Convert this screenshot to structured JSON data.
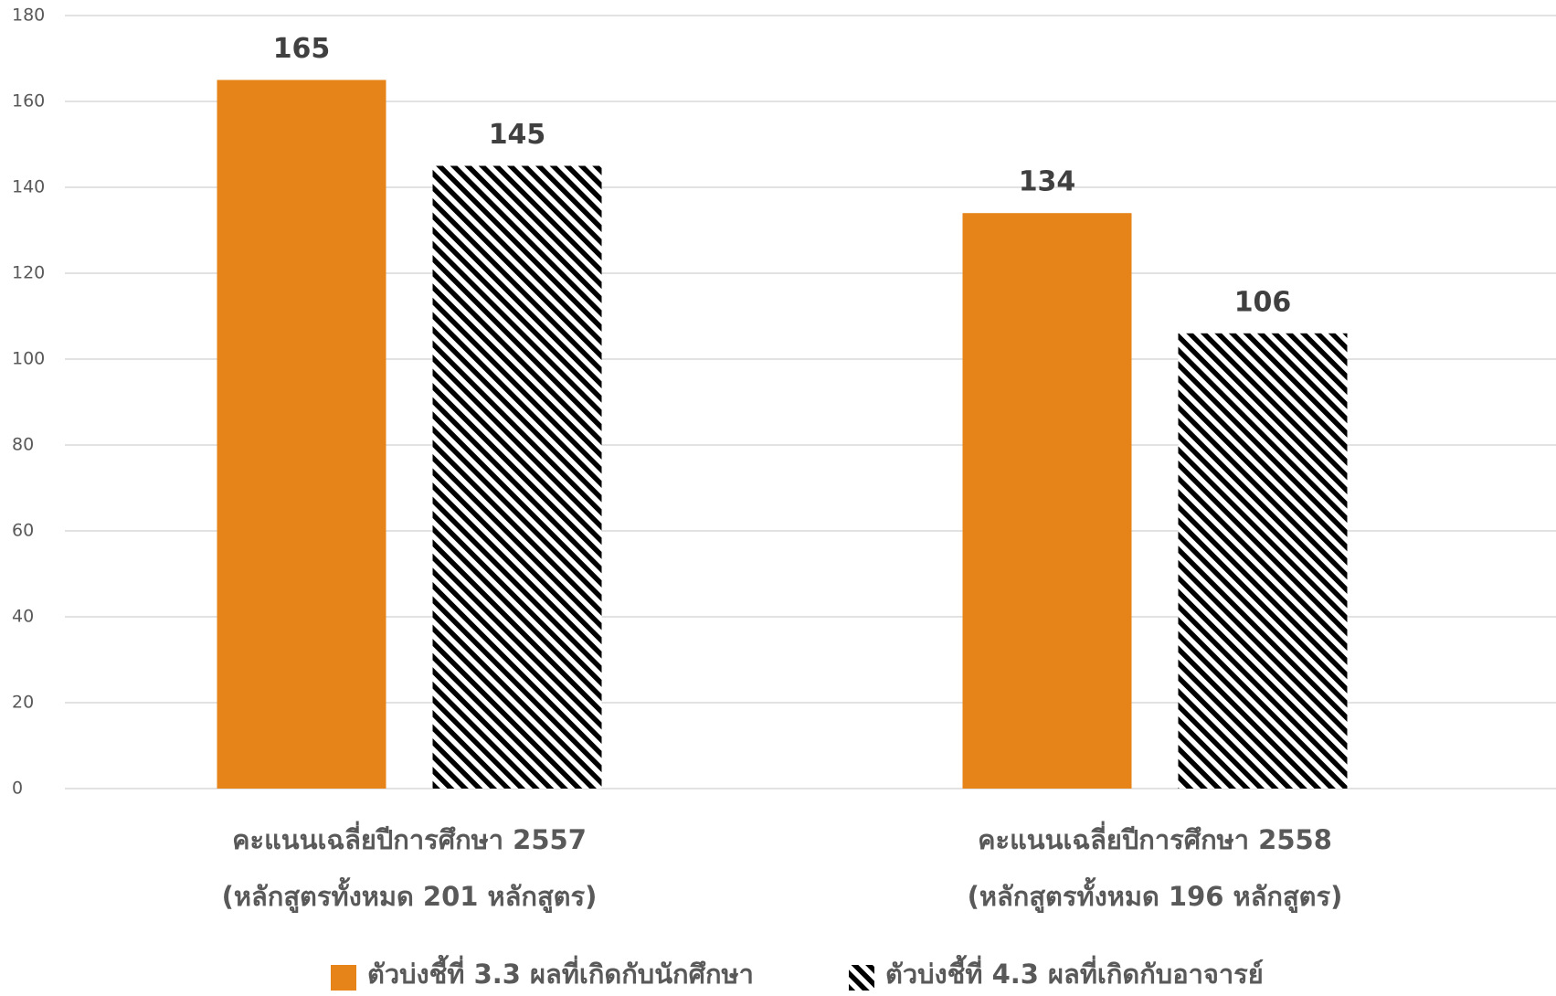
{
  "chart_data": {
    "type": "bar",
    "categories": [
      [
        "คะแนนเฉลี่ยปีการศึกษา 2557",
        "(หลักสูตรทั้งหมด 201 หลักสูตร)"
      ],
      [
        "คะแนนเฉลี่ยปีการศึกษา 2558",
        "(หลักสูตรทั้งหมด 196 หลักสูตร)"
      ]
    ],
    "series": [
      {
        "name": "ตัวบ่งชี้ที่ 3.3 ผลที่เกิดกับนักศึกษา",
        "color": "#e6841a",
        "values": [
          165,
          134
        ]
      },
      {
        "name": "ตัวบ่งชี้ที่ 4.3 ผลที่เกิดกับอาจารย์",
        "color": "#000000",
        "pattern": "diagonal-stripes",
        "values": [
          145,
          106
        ]
      }
    ],
    "ylim": [
      0,
      180
    ],
    "yticks": [
      0,
      20,
      40,
      60,
      80,
      100,
      120,
      140,
      160,
      180
    ],
    "grid": true,
    "legend": "bottom"
  }
}
